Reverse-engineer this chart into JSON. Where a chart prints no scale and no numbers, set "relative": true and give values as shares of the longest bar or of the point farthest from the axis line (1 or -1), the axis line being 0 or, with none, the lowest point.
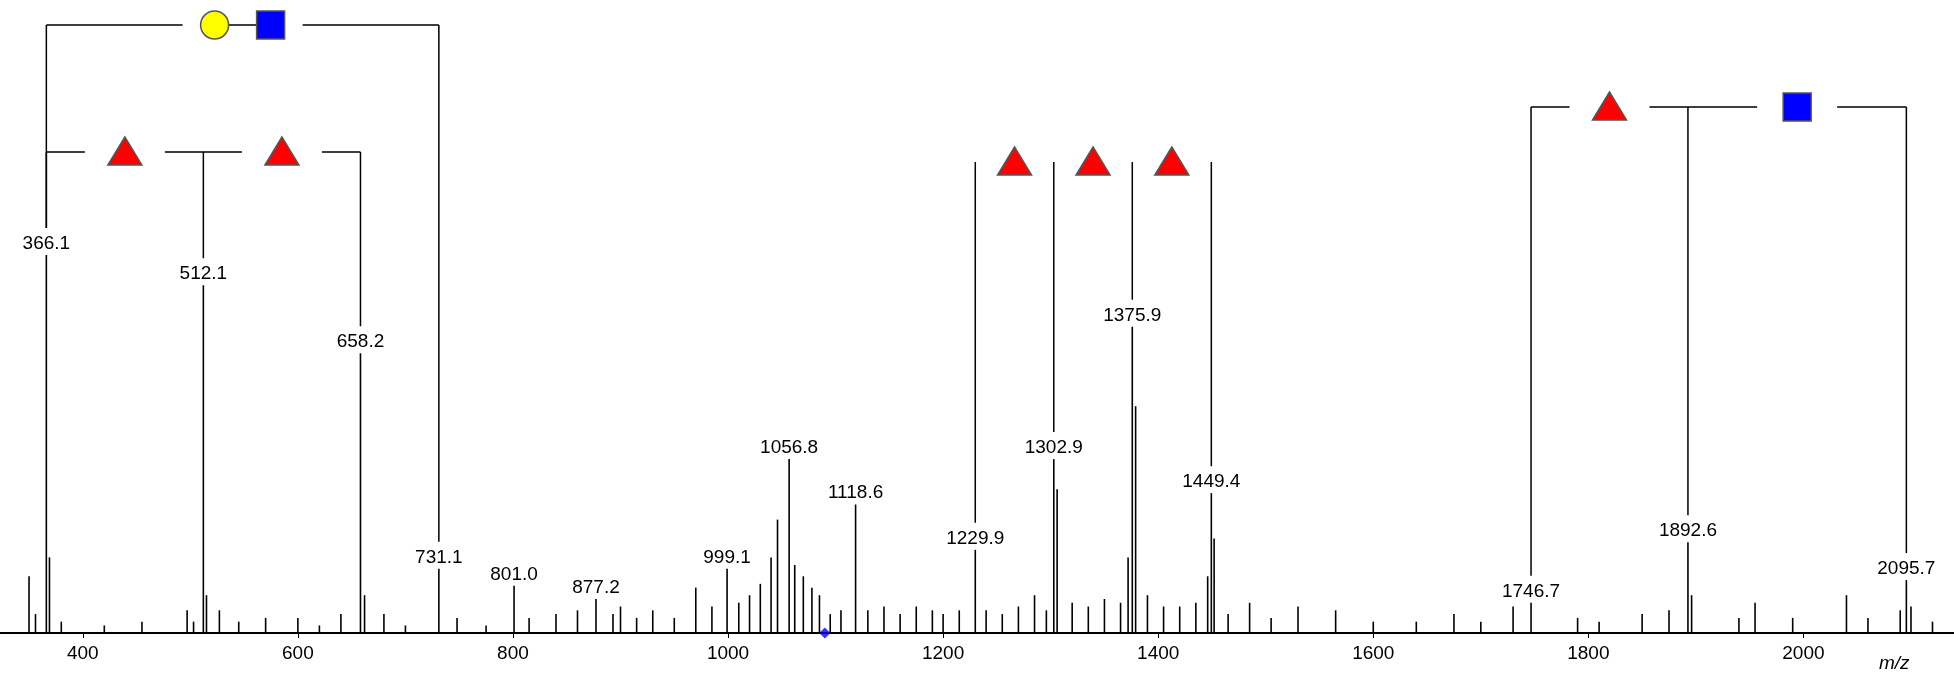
{
  "chart_data": {
    "type": "bar",
    "xlabel": "m/z",
    "relative": true,
    "xlim": [
      323,
      2140
    ],
    "xticks": [
      400,
      600,
      800,
      1000,
      1200,
      1400,
      1600,
      1800,
      2000
    ],
    "grid": false,
    "annotations": [
      {
        "text": "366.1",
        "x": 366.1,
        "y": 1
      },
      {
        "text": "512.1",
        "x": 512.1,
        "y": 0.92
      },
      {
        "text": "658.2",
        "x": 658.2,
        "y": 0.74
      },
      {
        "text": "731.1",
        "x": 731.1,
        "y": 0.17
      },
      {
        "text": "801.0",
        "x": 801.0,
        "y": 0.125
      },
      {
        "text": "877.2",
        "x": 877.2,
        "y": 0.09
      },
      {
        "text": "999.1",
        "x": 999.1,
        "y": 0.17
      },
      {
        "text": "1056.8",
        "x": 1056.8,
        "y": 0.46
      },
      {
        "text": "1118.6",
        "x": 1118.6,
        "y": 0.34
      },
      {
        "text": "1229.9",
        "x": 1229.9,
        "y": 0.22
      },
      {
        "text": "1302.9",
        "x": 1302.9,
        "y": 0.46
      },
      {
        "text": "1375.9",
        "x": 1375.9,
        "y": 0.81
      },
      {
        "text": "1449.4",
        "x": 1449.4,
        "y": 0.37
      },
      {
        "text": "1746.7",
        "x": 1746.7,
        "y": 0.08
      },
      {
        "text": "1892.6",
        "x": 1892.6,
        "y": 0.24
      },
      {
        "text": "2095.7",
        "x": 2095.7,
        "y": 0.14
      }
    ],
    "series": [
      {
        "color": "#000000",
        "x": [
          350,
          356,
          366.1,
          369,
          380,
          420,
          455,
          497,
          503,
          512.1,
          515,
          527,
          545,
          570,
          600,
          620,
          640,
          658.2,
          662,
          680,
          700,
          731.1,
          748,
          775,
          801.0,
          815,
          840,
          860,
          877.2,
          893,
          900,
          915,
          930,
          950,
          970,
          985,
          999.1,
          1010,
          1020,
          1030,
          1040,
          1046,
          1056.8,
          1062,
          1070,
          1078,
          1085,
          1095,
          1105,
          1118.6,
          1130,
          1145,
          1160,
          1175,
          1190,
          1200,
          1215,
          1229.9,
          1240,
          1255,
          1270,
          1285,
          1296,
          1302.9,
          1306,
          1320,
          1335,
          1350,
          1365,
          1372,
          1375.9,
          1379,
          1390,
          1405,
          1420,
          1435,
          1446,
          1449.4,
          1452,
          1465,
          1485,
          1505,
          1530,
          1565,
          1600,
          1640,
          1675,
          1700,
          1730,
          1746.7,
          1790,
          1810,
          1850,
          1875,
          1892.6,
          1896,
          1940,
          1955,
          1990,
          2040,
          2060,
          2090,
          2095.7,
          2100,
          2120
        ],
        "values": [
          0.15,
          0.05,
          1,
          0.2,
          0.03,
          0.02,
          0.03,
          0.06,
          0.03,
          0.92,
          0.1,
          0.06,
          0.03,
          0.04,
          0.04,
          0.02,
          0.05,
          0.74,
          0.1,
          0.05,
          0.02,
          0.17,
          0.04,
          0.02,
          0.125,
          0.04,
          0.05,
          0.06,
          0.09,
          0.05,
          0.07,
          0.04,
          0.06,
          0.04,
          0.12,
          0.07,
          0.17,
          0.08,
          0.1,
          0.13,
          0.2,
          0.3,
          0.46,
          0.18,
          0.15,
          0.12,
          0.1,
          0.05,
          0.06,
          0.34,
          0.06,
          0.07,
          0.05,
          0.07,
          0.06,
          0.05,
          0.06,
          0.22,
          0.06,
          0.05,
          0.07,
          0.1,
          0.06,
          0.46,
          0.38,
          0.08,
          0.07,
          0.09,
          0.08,
          0.2,
          0.81,
          0.6,
          0.1,
          0.07,
          0.07,
          0.08,
          0.15,
          0.37,
          0.25,
          0.05,
          0.08,
          0.04,
          0.07,
          0.06,
          0.03,
          0.03,
          0.05,
          0.03,
          0.07,
          0.08,
          0.04,
          0.03,
          0.05,
          0.06,
          0.24,
          0.1,
          0.04,
          0.08,
          0.04,
          0.1,
          0.04,
          0.06,
          0.14,
          0.07,
          0.03
        ]
      },
      {
        "type": "scatter",
        "marker": "diamond",
        "color": "#0000ff",
        "x": [
          1090
        ],
        "values": [
          0
        ]
      }
    ]
  }
}
